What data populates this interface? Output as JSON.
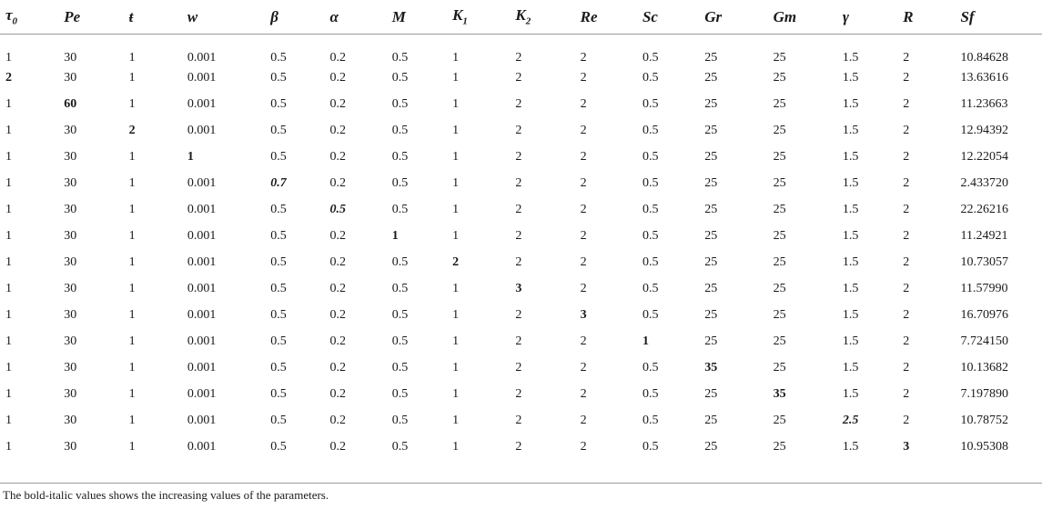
{
  "table": {
    "columns": [
      "τ0",
      "Pe",
      "ŧ",
      "w",
      "β",
      "α",
      "M",
      "K1",
      "K2",
      "Re",
      "Sc",
      "Gr",
      "Gm",
      "γ",
      "R",
      "Sf"
    ],
    "header_display": [
      {
        "base": "τ",
        "sub": "0"
      },
      {
        "base": "Pe",
        "sub": ""
      },
      {
        "base": "ŧ",
        "sub": ""
      },
      {
        "base": "w",
        "sub": ""
      },
      {
        "base": "β",
        "sub": ""
      },
      {
        "base": "α",
        "sub": ""
      },
      {
        "base": "M",
        "sub": ""
      },
      {
        "base": "K",
        "sub": "1"
      },
      {
        "base": "K",
        "sub": "2"
      },
      {
        "base": "Re",
        "sub": ""
      },
      {
        "base": "Sc",
        "sub": ""
      },
      {
        "base": "Gr",
        "sub": ""
      },
      {
        "base": "Gm",
        "sub": ""
      },
      {
        "base": "γ",
        "sub": ""
      },
      {
        "base": "R",
        "sub": ""
      },
      {
        "base": "Sf",
        "sub": ""
      }
    ],
    "rows": [
      {
        "cells": [
          "1",
          "30",
          "1",
          "0.001",
          "0.5",
          "0.2",
          "0.5",
          "1",
          "2",
          "2",
          "0.5",
          "25",
          "25",
          "1.5",
          "2",
          "10.84628"
        ],
        "highlight": null,
        "highlight_style": null
      },
      {
        "cells": [
          "2",
          "30",
          "1",
          "0.001",
          "0.5",
          "0.2",
          "0.5",
          "1",
          "2",
          "2",
          "0.5",
          "25",
          "25",
          "1.5",
          "2",
          "13.63616"
        ],
        "highlight": 0,
        "highlight_style": "bold"
      },
      {
        "cells": [
          "1",
          "60",
          "1",
          "0.001",
          "0.5",
          "0.2",
          "0.5",
          "1",
          "2",
          "2",
          "0.5",
          "25",
          "25",
          "1.5",
          "2",
          "11.23663"
        ],
        "highlight": 1,
        "highlight_style": "bold"
      },
      {
        "cells": [
          "1",
          "30",
          "2",
          "0.001",
          "0.5",
          "0.2",
          "0.5",
          "1",
          "2",
          "2",
          "0.5",
          "25",
          "25",
          "1.5",
          "2",
          "12.94392"
        ],
        "highlight": 2,
        "highlight_style": "bold"
      },
      {
        "cells": [
          "1",
          "30",
          "1",
          "1",
          "0.5",
          "0.2",
          "0.5",
          "1",
          "2",
          "2",
          "0.5",
          "25",
          "25",
          "1.5",
          "2",
          "12.22054"
        ],
        "highlight": 3,
        "highlight_style": "bold"
      },
      {
        "cells": [
          "1",
          "30",
          "1",
          "0.001",
          "0.7",
          "0.2",
          "0.5",
          "1",
          "2",
          "2",
          "0.5",
          "25",
          "25",
          "1.5",
          "2",
          "2.433720"
        ],
        "highlight": 4,
        "highlight_style": "bold-italic"
      },
      {
        "cells": [
          "1",
          "30",
          "1",
          "0.001",
          "0.5",
          "0.5",
          "0.5",
          "1",
          "2",
          "2",
          "0.5",
          "25",
          "25",
          "1.5",
          "2",
          "22.26216"
        ],
        "highlight": 5,
        "highlight_style": "bold-italic"
      },
      {
        "cells": [
          "1",
          "30",
          "1",
          "0.001",
          "0.5",
          "0.2",
          "1",
          "1",
          "2",
          "2",
          "0.5",
          "25",
          "25",
          "1.5",
          "2",
          "11.24921"
        ],
        "highlight": 6,
        "highlight_style": "bold"
      },
      {
        "cells": [
          "1",
          "30",
          "1",
          "0.001",
          "0.5",
          "0.2",
          "0.5",
          "2",
          "2",
          "2",
          "0.5",
          "25",
          "25",
          "1.5",
          "2",
          "10.73057"
        ],
        "highlight": 7,
        "highlight_style": "bold"
      },
      {
        "cells": [
          "1",
          "30",
          "1",
          "0.001",
          "0.5",
          "0.2",
          "0.5",
          "1",
          "3",
          "2",
          "0.5",
          "25",
          "25",
          "1.5",
          "2",
          "11.57990"
        ],
        "highlight": 8,
        "highlight_style": "bold"
      },
      {
        "cells": [
          "1",
          "30",
          "1",
          "0.001",
          "0.5",
          "0.2",
          "0.5",
          "1",
          "2",
          "3",
          "0.5",
          "25",
          "25",
          "1.5",
          "2",
          "16.70976"
        ],
        "highlight": 9,
        "highlight_style": "bold"
      },
      {
        "cells": [
          "1",
          "30",
          "1",
          "0.001",
          "0.5",
          "0.2",
          "0.5",
          "1",
          "2",
          "2",
          "1",
          "25",
          "25",
          "1.5",
          "2",
          "7.724150"
        ],
        "highlight": 10,
        "highlight_style": "bold"
      },
      {
        "cells": [
          "1",
          "30",
          "1",
          "0.001",
          "0.5",
          "0.2",
          "0.5",
          "1",
          "2",
          "2",
          "0.5",
          "35",
          "25",
          "1.5",
          "2",
          "10.13682"
        ],
        "highlight": 11,
        "highlight_style": "bold"
      },
      {
        "cells": [
          "1",
          "30",
          "1",
          "0.001",
          "0.5",
          "0.2",
          "0.5",
          "1",
          "2",
          "2",
          "0.5",
          "25",
          "35",
          "1.5",
          "2",
          "7.197890"
        ],
        "highlight": 12,
        "highlight_style": "bold"
      },
      {
        "cells": [
          "1",
          "30",
          "1",
          "0.001",
          "0.5",
          "0.2",
          "0.5",
          "1",
          "2",
          "2",
          "0.5",
          "25",
          "25",
          "2.5",
          "2",
          "10.78752"
        ],
        "highlight": 13,
        "highlight_style": "bold-italic"
      },
      {
        "cells": [
          "1",
          "30",
          "1",
          "0.001",
          "0.5",
          "0.2",
          "0.5",
          "1",
          "2",
          "2",
          "0.5",
          "25",
          "25",
          "1.5",
          "3",
          "10.95308"
        ],
        "highlight": 14,
        "highlight_style": "bold"
      }
    ]
  },
  "footnote": "The bold-italic values shows the increasing values of the parameters."
}
